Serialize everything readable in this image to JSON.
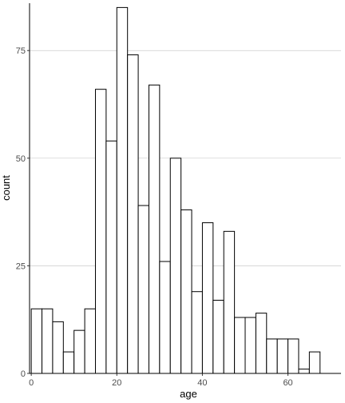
{
  "chart_data": {
    "type": "bar",
    "subtype": "histogram",
    "title": "",
    "xlabel": "age",
    "ylabel": "count",
    "xlim": [
      -0.4,
      72.4
    ],
    "ylim": [
      0,
      86
    ],
    "x_ticks": [
      0,
      20,
      40,
      60
    ],
    "y_ticks": [
      0,
      25,
      50,
      75
    ],
    "grid": {
      "horizontal_major": true,
      "vertical": false
    },
    "bin_width": 2.5,
    "bin_start": 1.25,
    "values": [
      15,
      15,
      12,
      5,
      10,
      15,
      66,
      54,
      85,
      74,
      39,
      67,
      26,
      50,
      38,
      19,
      35,
      17,
      33,
      13,
      13,
      14,
      8,
      8,
      8,
      1,
      5
    ],
    "colors": {
      "bar_fill": "#ffffff",
      "bar_stroke": "#000000",
      "grid": "#cccccc",
      "axis": "#000000",
      "background": "#ffffff"
    }
  }
}
